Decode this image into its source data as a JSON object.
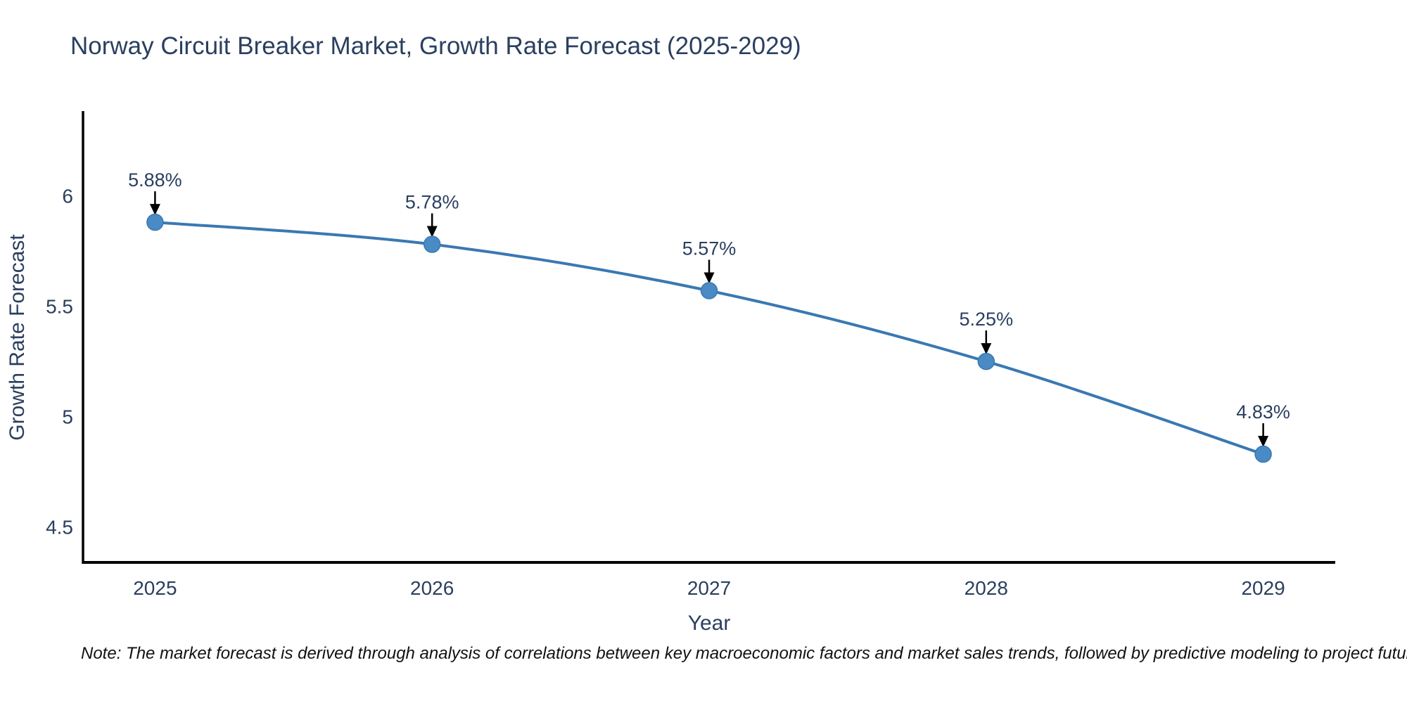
{
  "header": {
    "title": "Norway Circuit Breaker Market, Growth Rate Forecast (2025-2029)"
  },
  "chart_data": {
    "type": "line",
    "title": "Norway Circuit Breaker Market, Growth Rate Forecast (2025-2029)",
    "xlabel": "Year",
    "ylabel": "Growth Rate Forecast",
    "x": [
      2025,
      2026,
      2027,
      2028,
      2029
    ],
    "series": [
      {
        "name": "Growth Rate Forecast",
        "values": [
          5.88,
          5.78,
          5.57,
          5.25,
          4.83
        ]
      }
    ],
    "point_labels": [
      "5.88%",
      "5.78%",
      "5.57%",
      "5.25%",
      "4.83%"
    ],
    "xtick_labels": [
      "2025",
      "2026",
      "2027",
      "2028",
      "2029"
    ],
    "ytick_values": [
      4.5,
      5,
      5.5,
      6
    ],
    "ytick_labels": [
      "4.5",
      "5",
      "5.5",
      "6"
    ],
    "xlim": [
      2024.74,
      2029.26
    ],
    "ylim": [
      4.34,
      6.38
    ],
    "grid": false,
    "legend_position": "none",
    "line_color": "#3a78b2",
    "marker_color": "#4a8ac5",
    "arrow_color": "#000000",
    "axis_color": "#000000",
    "text_color": "#2a3f5f"
  },
  "footer": {
    "note": "Note: The market forecast is derived through analysis of correlations between key macroeconomic factors and market sales trends, followed by predictive modeling to project future sales"
  }
}
